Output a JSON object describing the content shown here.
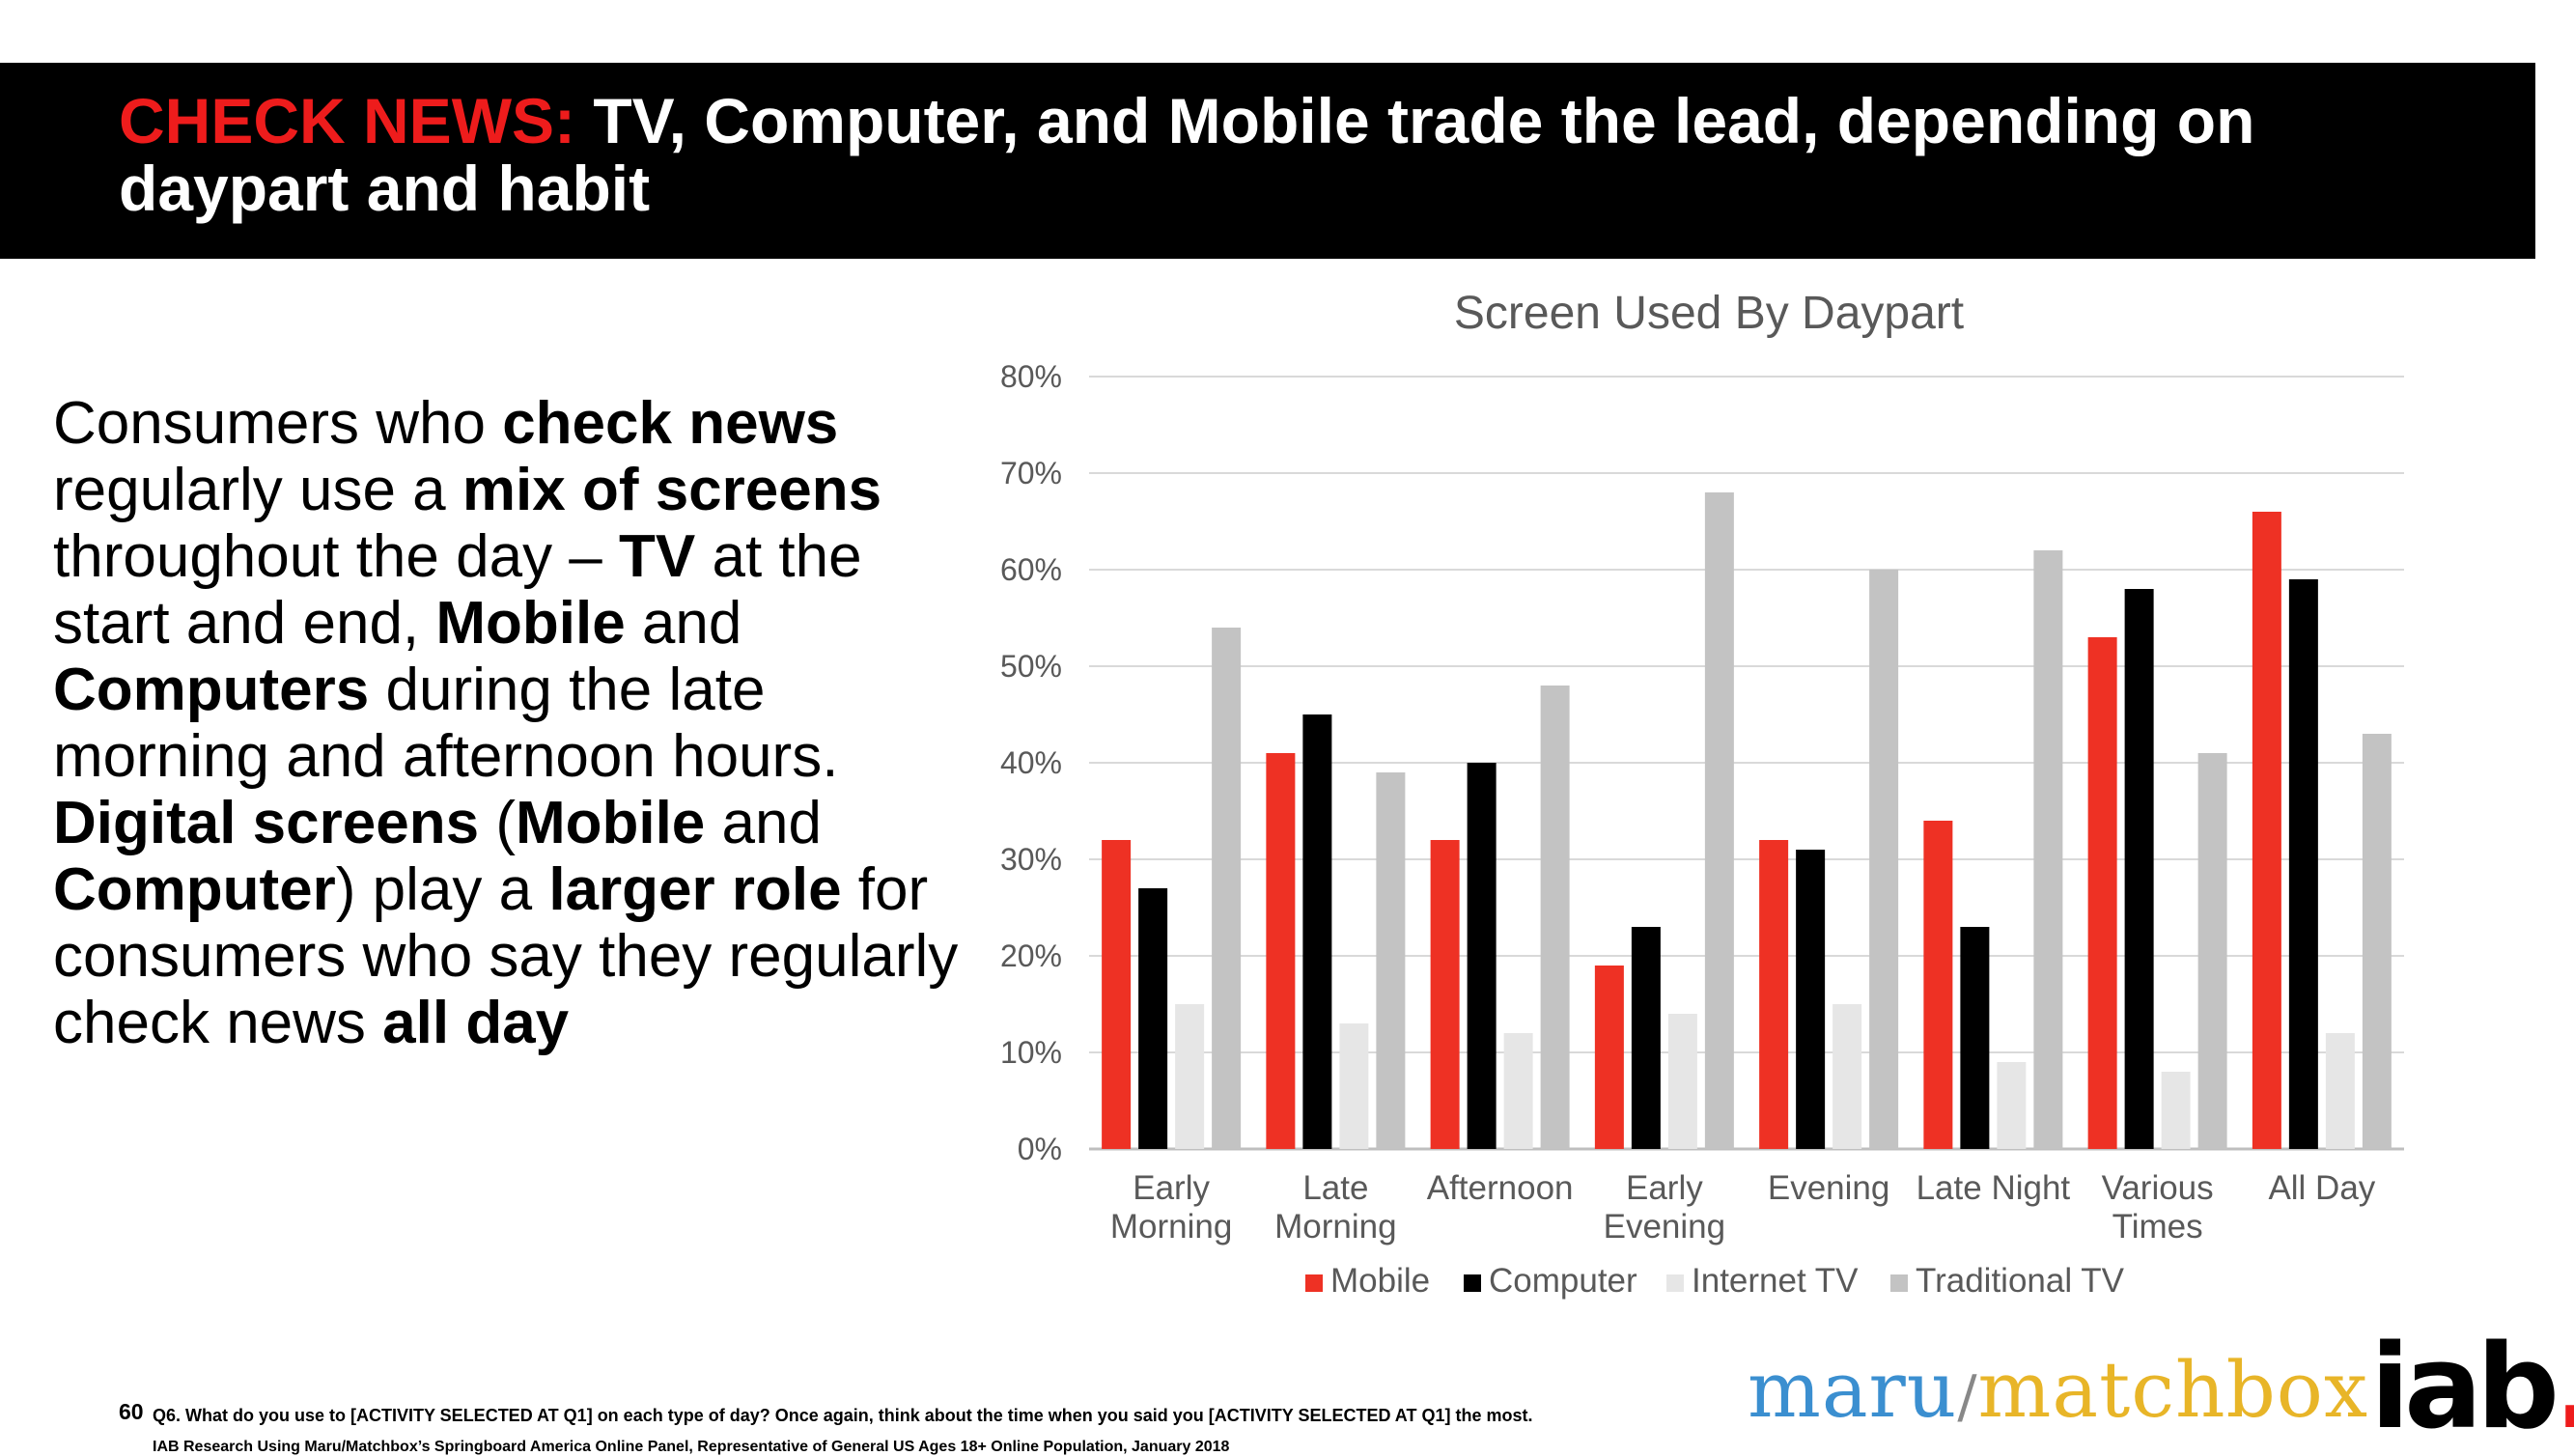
{
  "header": {
    "title_highlight": "CHECK NEWS:",
    "title_rest": " TV, Computer, and Mobile trade the lead, depending on daypart and habit"
  },
  "body_text": {
    "segments": [
      {
        "text": "Consumers who ",
        "bold": false
      },
      {
        "text": "check news",
        "bold": true
      },
      {
        "text": " regularly use a ",
        "bold": false
      },
      {
        "text": "mix of screens",
        "bold": true
      },
      {
        "text": " throughout the day – ",
        "bold": false
      },
      {
        "text": "TV",
        "bold": true
      },
      {
        "text": " at the start and end, ",
        "bold": false
      },
      {
        "text": "Mobile",
        "bold": true
      },
      {
        "text": " and ",
        "bold": false
      },
      {
        "text": "Computers",
        "bold": true
      },
      {
        "text": " during the late morning and afternoon hours. ",
        "bold": false
      },
      {
        "text": "Digital screens",
        "bold": true
      },
      {
        "text": " (",
        "bold": false
      },
      {
        "text": "Mobile",
        "bold": true
      },
      {
        "text": " and ",
        "bold": false
      },
      {
        "text": "Computer",
        "bold": true
      },
      {
        "text": ") play a ",
        "bold": false
      },
      {
        "text": "larger role",
        "bold": true
      },
      {
        "text": " for consumers who say they regularly check news ",
        "bold": false
      },
      {
        "text": "all day",
        "bold": true
      }
    ]
  },
  "chart_data": {
    "type": "bar",
    "title": "Screen Used By Daypart",
    "categories": [
      [
        "Early",
        "Morning"
      ],
      [
        "Late",
        "Morning"
      ],
      [
        "Afternoon"
      ],
      [
        "Early",
        "Evening"
      ],
      [
        "Evening"
      ],
      [
        "Late Night"
      ],
      [
        "Various",
        "Times"
      ],
      [
        "All Day"
      ]
    ],
    "series": [
      {
        "name": "Mobile",
        "color": "#ee3124",
        "values": [
          32,
          41,
          32,
          19,
          32,
          34,
          53,
          66
        ]
      },
      {
        "name": "Computer",
        "color": "#000000",
        "values": [
          27,
          45,
          40,
          23,
          31,
          23,
          58,
          59
        ]
      },
      {
        "name": "Internet TV",
        "color": "#e6e6e6",
        "values": [
          15,
          13,
          12,
          14,
          15,
          9,
          8,
          12
        ]
      },
      {
        "name": "Traditional TV",
        "color": "#c3c3c3",
        "values": [
          54,
          39,
          48,
          68,
          60,
          62,
          41,
          43
        ]
      }
    ],
    "y_ticks": [
      "0%",
      "10%",
      "20%",
      "30%",
      "40%",
      "50%",
      "60%",
      "70%",
      "80%"
    ],
    "ylim": [
      0,
      80
    ],
    "grid": true,
    "legend": "bottom"
  },
  "footnote": {
    "page_number": "60",
    "question": "Q6. What do you use to [ACTIVITY SELECTED AT Q1] on each type of day?  Once again, think about the time when you said you [ACTIVITY SELECTED AT Q1] the most.",
    "source": "IAB Research Using Maru/Matchbox’s Springboard America Online Panel, Representative of General US Ages 18+ Online Population, January 2018"
  },
  "logos": {
    "maru_part1": "maru",
    "maru_slash": "/",
    "maru_part2": "matchbox",
    "iab_text": "iab",
    "iab_dot": "."
  }
}
